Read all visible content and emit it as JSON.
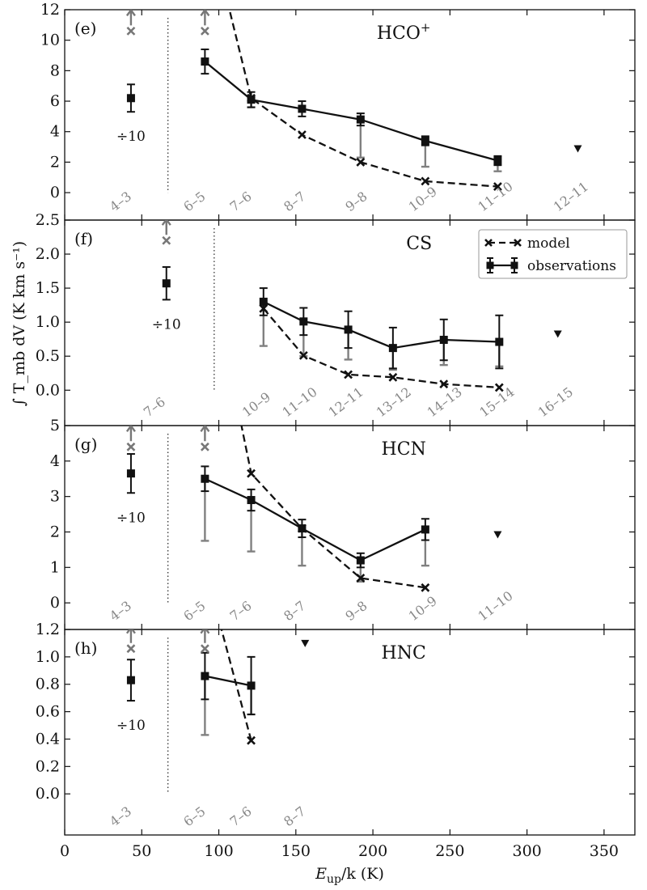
{
  "chart_data": {
    "type": "line",
    "xlabel": "E_up/k (K)",
    "ylabel": "∫ T_mb dV (K km s⁻¹)",
    "xlim": [
      0,
      370
    ],
    "xticks": [
      0,
      50,
      100,
      150,
      200,
      250,
      300,
      350
    ],
    "legend": {
      "position": "top-right",
      "entries": [
        {
          "label": "model",
          "style": "dashed-x"
        },
        {
          "label": "observations",
          "style": "solid-square-errorbar"
        }
      ]
    },
    "panels": [
      {
        "label": "(e)",
        "species": "HCO",
        "species_sup": "+",
        "ylim": [
          -1.8,
          12
        ],
        "yticks": [
          0,
          2,
          4,
          6,
          8,
          10,
          12
        ],
        "divider_x": 67,
        "scaled_point": {
          "x": 43,
          "y": 6.2,
          "err": 0.9,
          "note": "÷10"
        },
        "scaled_arrows": [
          {
            "x": 43,
            "y": 10.6
          },
          {
            "x": 91,
            "y": 10.6
          }
        ],
        "observations": [
          {
            "x": 91,
            "y": 8.6,
            "err": 0.8,
            "grey_low": null
          },
          {
            "x": 121,
            "y": 6.1,
            "err": 0.5,
            "grey_low": 5.6
          },
          {
            "x": 154,
            "y": 5.5,
            "err": 0.5,
            "grey_low": null
          },
          {
            "x": 192,
            "y": 4.8,
            "err": 0.4,
            "grey_low": 2.3
          },
          {
            "x": 234,
            "y": 3.4,
            "err": 0.3,
            "grey_low": 1.7
          },
          {
            "x": 281,
            "y": 2.1,
            "err": 0.3,
            "grey_low": 1.4
          }
        ],
        "model": [
          {
            "x": 102,
            "y": 14.0,
            "marker": false
          },
          {
            "x": 121,
            "y": 6.2,
            "marker": true
          },
          {
            "x": 154,
            "y": 3.8,
            "marker": true
          },
          {
            "x": 192,
            "y": 2.0,
            "marker": true
          },
          {
            "x": 234,
            "y": 0.75,
            "marker": true
          },
          {
            "x": 281,
            "y": 0.4,
            "marker": true
          }
        ],
        "upper_limits": [
          {
            "x": 333,
            "y": 2.9
          }
        ],
        "transitions": [
          {
            "x": 32,
            "label": "4–3"
          },
          {
            "x": 80,
            "label": "6–5"
          },
          {
            "x": 110,
            "label": "7–6"
          },
          {
            "x": 145,
            "label": "8–7"
          },
          {
            "x": 185,
            "label": "9–8"
          },
          {
            "x": 226,
            "label": "10–9"
          },
          {
            "x": 271,
            "label": "11–10"
          },
          {
            "x": 320,
            "label": "12–11"
          }
        ]
      },
      {
        "label": "(f)",
        "species": "CS",
        "species_sup": "",
        "ylim": [
          -0.52,
          2.5
        ],
        "yticks": [
          0.0,
          0.5,
          1.0,
          1.5,
          2.0,
          2.5
        ],
        "divider_x": 97,
        "scaled_point": {
          "x": 66,
          "y": 1.57,
          "err": 0.24,
          "note": "÷10"
        },
        "scaled_arrows": [
          {
            "x": 66,
            "y": 2.2
          }
        ],
        "observations": [
          {
            "x": 129,
            "y": 1.3,
            "err": 0.2,
            "grey_low": 0.65
          },
          {
            "x": 155,
            "y": 1.01,
            "err": 0.2,
            "grey_low": 0.5
          },
          {
            "x": 184,
            "y": 0.89,
            "err": 0.27,
            "grey_low": 0.45
          },
          {
            "x": 213,
            "y": 0.62,
            "err": 0.3,
            "grey_low": 0.3
          },
          {
            "x": 246,
            "y": 0.74,
            "err": 0.3,
            "grey_low": 0.37
          },
          {
            "x": 282,
            "y": 0.71,
            "err": 0.39,
            "grey_low": 0.35
          }
        ],
        "model": [
          {
            "x": 129,
            "y": 1.2,
            "marker": true
          },
          {
            "x": 155,
            "y": 0.51,
            "marker": true
          },
          {
            "x": 184,
            "y": 0.23,
            "marker": true
          },
          {
            "x": 213,
            "y": 0.19,
            "marker": true
          },
          {
            "x": 246,
            "y": 0.09,
            "marker": true
          },
          {
            "x": 282,
            "y": 0.04,
            "marker": true
          }
        ],
        "upper_limits": [
          {
            "x": 320,
            "y": 0.83
          }
        ],
        "transitions": [
          {
            "x": 54,
            "label": "7–6"
          },
          {
            "x": 118,
            "label": "10–9"
          },
          {
            "x": 144,
            "label": "11–10"
          },
          {
            "x": 174,
            "label": "12–11"
          },
          {
            "x": 205,
            "label": "13–12"
          },
          {
            "x": 238,
            "label": "14–13"
          },
          {
            "x": 272,
            "label": "15–14"
          },
          {
            "x": 310,
            "label": "16–15"
          }
        ]
      },
      {
        "label": "(g)",
        "species": "HCN",
        "species_sup": "",
        "ylim": [
          -0.75,
          5
        ],
        "yticks": [
          0,
          1,
          2,
          3,
          4,
          5
        ],
        "divider_x": 67,
        "scaled_point": {
          "x": 43,
          "y": 3.65,
          "err": 0.55,
          "note": "÷10"
        },
        "scaled_arrows": [
          {
            "x": 43,
            "y": 4.4
          },
          {
            "x": 91,
            "y": 4.4
          }
        ],
        "observations": [
          {
            "x": 91,
            "y": 3.5,
            "err": 0.35,
            "grey_low": 1.75
          },
          {
            "x": 121,
            "y": 2.9,
            "err": 0.3,
            "grey_low": 1.45
          },
          {
            "x": 154,
            "y": 2.1,
            "err": 0.25,
            "grey_low": 1.05
          },
          {
            "x": 192,
            "y": 1.2,
            "err": 0.2,
            "grey_low": 0.6
          },
          {
            "x": 234,
            "y": 2.07,
            "err": 0.3,
            "grey_low": 1.05
          }
        ],
        "model": [
          {
            "x": 110,
            "y": 6.0,
            "marker": false
          },
          {
            "x": 121,
            "y": 3.65,
            "marker": true
          },
          {
            "x": 154,
            "y": 2.1,
            "marker": true
          },
          {
            "x": 192,
            "y": 0.7,
            "marker": true
          },
          {
            "x": 234,
            "y": 0.43,
            "marker": true
          }
        ],
        "upper_limits": [
          {
            "x": 281,
            "y": 1.93
          }
        ],
        "transitions": [
          {
            "x": 32,
            "label": "4–3"
          },
          {
            "x": 80,
            "label": "6–5"
          },
          {
            "x": 110,
            "label": "7–6"
          },
          {
            "x": 145,
            "label": "8–7"
          },
          {
            "x": 185,
            "label": "9–8"
          },
          {
            "x": 226,
            "label": "10–9"
          },
          {
            "x": 271,
            "label": "11–10"
          }
        ]
      },
      {
        "label": "(h)",
        "species": "HNC",
        "species_sup": "",
        "ylim": [
          -0.3,
          1.2
        ],
        "yticks": [
          0.0,
          0.2,
          0.4,
          0.6,
          0.8,
          1.0,
          1.2
        ],
        "divider_x": 67,
        "scaled_point": {
          "x": 43,
          "y": 0.83,
          "err": 0.15,
          "note": "÷10"
        },
        "scaled_arrows": [
          {
            "x": 43,
            "y": 1.06
          },
          {
            "x": 91,
            "y": 1.06
          }
        ],
        "observations": [
          {
            "x": 91,
            "y": 0.86,
            "err": 0.17,
            "grey_low": 0.43
          },
          {
            "x": 121,
            "y": 0.79,
            "err": 0.21,
            "grey_low": 0.58
          }
        ],
        "model": [
          {
            "x": 97,
            "y": 1.4,
            "marker": false
          },
          {
            "x": 121,
            "y": 0.39,
            "marker": true
          }
        ],
        "upper_limits": [
          {
            "x": 156,
            "y": 1.1
          }
        ],
        "transitions": [
          {
            "x": 32,
            "label": "4–3"
          },
          {
            "x": 80,
            "label": "6–5"
          },
          {
            "x": 110,
            "label": "7–6"
          },
          {
            "x": 145,
            "label": "8–7"
          }
        ]
      }
    ]
  }
}
